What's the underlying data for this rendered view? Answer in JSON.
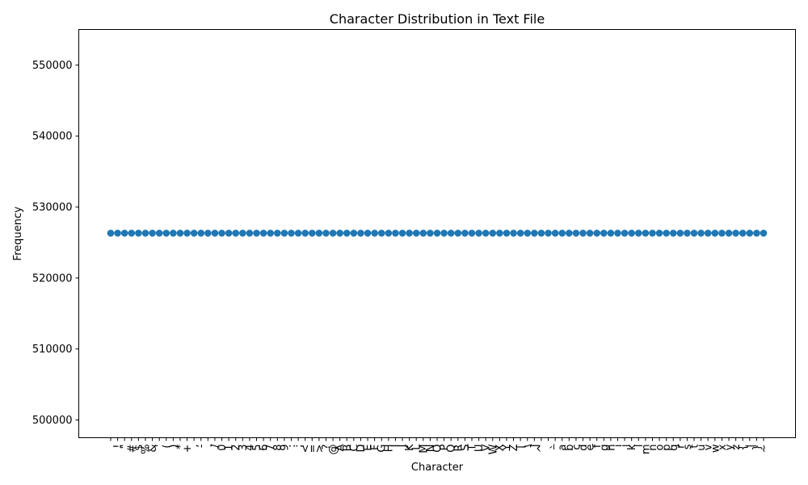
{
  "chart_data": {
    "type": "scatter",
    "title": "Character Distribution in Text File",
    "xlabel": "Character",
    "ylabel": "Frequency",
    "ylim": [
      497500,
      555000
    ],
    "yticks": [
      500000,
      510000,
      520000,
      530000,
      540000,
      550000
    ],
    "ytick_labels": [
      "500000",
      "510000",
      "520000",
      "530000",
      "540000",
      "550000"
    ],
    "marker_color": "#1f77b4",
    "grid": false,
    "categories": [
      " ",
      "!",
      "\"",
      "#",
      "$",
      "%",
      "&",
      "'",
      "(",
      ")",
      "*",
      "+",
      ",",
      "-",
      ".",
      "/",
      "0",
      "1",
      "2",
      "3",
      "4",
      "5",
      "6",
      "7",
      "8",
      "9",
      ":",
      ";",
      "<",
      "=",
      ">",
      "?",
      "@",
      "A",
      "B",
      "C",
      "D",
      "E",
      "F",
      "G",
      "H",
      "I",
      "J",
      "K",
      "L",
      "M",
      "N",
      "O",
      "P",
      "Q",
      "R",
      "S",
      "T",
      "U",
      "V",
      "W",
      "X",
      "Y",
      "Z",
      "[",
      "\\",
      "]",
      "^",
      "_",
      "`",
      "a",
      "b",
      "c",
      "d",
      "e",
      "f",
      "g",
      "h",
      "i",
      "j",
      "k",
      "l",
      "m",
      "n",
      "o",
      "p",
      "q",
      "r",
      "s",
      "t",
      "u",
      "v",
      "w",
      "x",
      "y",
      "z",
      "{",
      "|",
      "}",
      "~"
    ],
    "values": [
      526316,
      526316,
      526316,
      526316,
      526316,
      526316,
      526316,
      526316,
      526316,
      526316,
      526316,
      526316,
      526316,
      526316,
      526316,
      526316,
      526316,
      526316,
      526316,
      526316,
      526316,
      526316,
      526316,
      526316,
      526316,
      526316,
      526316,
      526316,
      526316,
      526316,
      526316,
      526316,
      526316,
      526316,
      526316,
      526316,
      526316,
      526316,
      526316,
      526316,
      526316,
      526316,
      526316,
      526316,
      526316,
      526316,
      526316,
      526316,
      526316,
      526316,
      526316,
      526316,
      526316,
      526316,
      526316,
      526316,
      526316,
      526316,
      526316,
      526316,
      526316,
      526316,
      526316,
      526316,
      526316,
      526316,
      526316,
      526316,
      526316,
      526316,
      526316,
      526316,
      526316,
      526316,
      526316,
      526316,
      526316,
      526316,
      526316,
      526316,
      526316,
      526316,
      526316,
      526316,
      526316,
      526316,
      526316,
      526316,
      526316,
      526316,
      526316,
      526316,
      526316,
      526316,
      526316
    ]
  }
}
